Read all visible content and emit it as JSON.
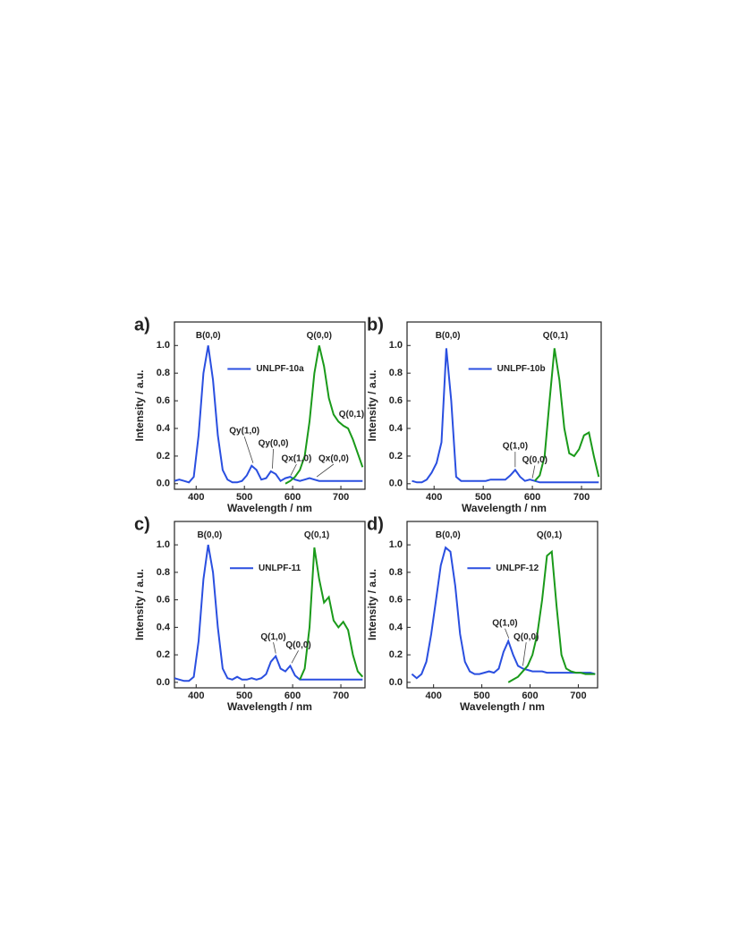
{
  "chart_data": [
    {
      "type": "line",
      "panel_label": "a)",
      "xlabel": "Wavelength / nm",
      "ylabel": "Intensity / a.u.",
      "xlim": [
        355,
        750
      ],
      "ylim": [
        -0.04,
        1.17
      ],
      "xticks": [
        400,
        500,
        600,
        700
      ],
      "yticks": [
        {
          "value": 0,
          "label": "0.0"
        },
        0.2,
        0.4,
        0.6,
        0.8,
        {
          "value": 1,
          "label": "1.0"
        }
      ],
      "x": [
        355,
        365,
        375,
        385,
        395,
        405,
        415,
        425,
        435,
        445,
        455,
        465,
        475,
        485,
        495,
        505,
        515,
        525,
        535,
        545,
        555,
        565,
        575,
        585,
        595,
        605,
        615,
        625,
        635,
        645,
        655,
        665,
        675,
        685,
        695,
        705,
        715,
        725,
        735,
        745
      ],
      "series": [
        {
          "name": "UNLPF-10a",
          "color": "#2a4fe0",
          "values": [
            0.02,
            0.03,
            0.02,
            0.01,
            0.05,
            0.35,
            0.8,
            1.0,
            0.75,
            0.35,
            0.1,
            0.03,
            0.01,
            0.01,
            0.02,
            0.06,
            0.13,
            0.1,
            0.03,
            0.04,
            0.09,
            0.07,
            0.02,
            0.04,
            0.05,
            0.03,
            0.02,
            0.03,
            0.04,
            0.03,
            0.02,
            0.02,
            0.02,
            0.02,
            0.02,
            0.02,
            0.02,
            0.02,
            0.02,
            0.02
          ]
        },
        {
          "color": "#1a9a1a",
          "values": [
            null,
            null,
            null,
            null,
            null,
            null,
            null,
            null,
            null,
            null,
            null,
            null,
            null,
            null,
            null,
            null,
            null,
            null,
            null,
            null,
            null,
            null,
            null,
            0.0,
            0.02,
            0.05,
            0.1,
            0.2,
            0.45,
            0.8,
            1.0,
            0.85,
            0.62,
            0.5,
            0.45,
            0.42,
            0.4,
            0.32,
            0.22,
            0.12
          ]
        }
      ],
      "annotations": [
        "B(0,0)",
        "Q(0,0)",
        "Q(0,1)",
        "Qy(1,0)",
        "Qy(0,0)",
        "Qx(1,0)",
        "Qx(0,0)"
      ]
    },
    {
      "type": "line",
      "panel_label": "b)",
      "xlabel": "Wavelength / nm",
      "ylabel": "Intensity / a.u.",
      "xlim": [
        345,
        740
      ],
      "ylim": [
        -0.04,
        1.17
      ],
      "xticks": [
        400,
        500,
        600,
        700
      ],
      "yticks": [
        {
          "value": 0,
          "label": "0.0"
        },
        0.2,
        0.4,
        0.6,
        0.8,
        {
          "value": 1,
          "label": "1.0"
        }
      ],
      "x": [
        355,
        365,
        375,
        385,
        395,
        405,
        415,
        425,
        435,
        445,
        455,
        465,
        475,
        485,
        495,
        505,
        515,
        525,
        535,
        545,
        555,
        565,
        575,
        585,
        595,
        605,
        615,
        625,
        635,
        645,
        655,
        665,
        675,
        685,
        695,
        705,
        715,
        725,
        735
      ],
      "series": [
        {
          "name": "UNLPF-10b",
          "color": "#2a4fe0",
          "values": [
            0.02,
            0.01,
            0.01,
            0.03,
            0.08,
            0.15,
            0.3,
            0.98,
            0.6,
            0.05,
            0.02,
            0.02,
            0.02,
            0.02,
            0.02,
            0.02,
            0.03,
            0.03,
            0.03,
            0.03,
            0.06,
            0.1,
            0.05,
            0.02,
            0.03,
            0.02,
            0.01,
            0.01,
            0.01,
            0.01,
            0.01,
            0.01,
            0.01,
            0.01,
            0.01,
            0.01,
            0.01,
            0.01,
            0.01
          ]
        },
        {
          "color": "#1a9a1a",
          "values": [
            null,
            null,
            null,
            null,
            null,
            null,
            null,
            null,
            null,
            null,
            null,
            null,
            null,
            null,
            null,
            null,
            null,
            null,
            null,
            null,
            null,
            null,
            null,
            null,
            null,
            0.02,
            0.06,
            0.2,
            0.6,
            0.98,
            0.75,
            0.4,
            0.22,
            0.2,
            0.25,
            0.35,
            0.37,
            0.2,
            0.05
          ]
        }
      ],
      "annotations": [
        "B(0,0)",
        "Q(0,1)",
        "Q(1,0)",
        "Q(0,0)"
      ]
    },
    {
      "type": "line",
      "panel_label": "c)",
      "xlabel": "Wavelength / nm",
      "ylabel": "Intensity / a.u.",
      "xlim": [
        355,
        750
      ],
      "ylim": [
        -0.04,
        1.17
      ],
      "xticks": [
        400,
        500,
        600,
        700
      ],
      "yticks": [
        {
          "value": 0,
          "label": "0.0"
        },
        0.2,
        0.4,
        0.6,
        0.8,
        {
          "value": 1,
          "label": "1.0"
        }
      ],
      "x": [
        355,
        365,
        375,
        385,
        395,
        405,
        415,
        425,
        435,
        445,
        455,
        465,
        475,
        485,
        495,
        505,
        515,
        525,
        535,
        545,
        555,
        565,
        575,
        585,
        595,
        605,
        615,
        625,
        635,
        645,
        655,
        665,
        675,
        685,
        695,
        705,
        715,
        725,
        735,
        745
      ],
      "series": [
        {
          "name": "UNLPF-11",
          "color": "#2a4fe0",
          "values": [
            0.03,
            0.02,
            0.01,
            0.01,
            0.04,
            0.3,
            0.75,
            1.0,
            0.8,
            0.4,
            0.1,
            0.03,
            0.02,
            0.04,
            0.02,
            0.02,
            0.03,
            0.02,
            0.03,
            0.06,
            0.15,
            0.19,
            0.1,
            0.08,
            0.12,
            0.05,
            0.02,
            0.02,
            0.02,
            0.02,
            0.02,
            0.02,
            0.02,
            0.02,
            0.02,
            0.02,
            0.02,
            0.02,
            0.02,
            0.02
          ]
        },
        {
          "color": "#1a9a1a",
          "values": [
            null,
            null,
            null,
            null,
            null,
            null,
            null,
            null,
            null,
            null,
            null,
            null,
            null,
            null,
            null,
            null,
            null,
            null,
            null,
            null,
            null,
            null,
            null,
            null,
            null,
            null,
            0.02,
            0.1,
            0.4,
            0.98,
            0.75,
            0.58,
            0.62,
            0.45,
            0.4,
            0.44,
            0.38,
            0.2,
            0.08,
            0.04
          ]
        }
      ],
      "annotations": [
        "B(0,0)",
        "Q(0,1)",
        "Q(1,0)",
        "Q(0,0)"
      ]
    },
    {
      "type": "line",
      "panel_label": "d)",
      "xlabel": "Wavelength / nm",
      "ylabel": "Intensity / a.u.",
      "xlim": [
        345,
        740
      ],
      "ylim": [
        -0.04,
        1.17
      ],
      "xticks": [
        400,
        500,
        600,
        700
      ],
      "yticks": [
        {
          "value": 0,
          "label": "0.0"
        },
        0.2,
        0.4,
        0.6,
        0.8,
        {
          "value": 1,
          "label": "1.0"
        }
      ],
      "x": [
        355,
        365,
        375,
        385,
        395,
        405,
        415,
        425,
        435,
        445,
        455,
        465,
        475,
        485,
        495,
        505,
        515,
        525,
        535,
        545,
        555,
        565,
        575,
        585,
        595,
        605,
        615,
        625,
        635,
        645,
        655,
        665,
        675,
        685,
        695,
        705,
        715,
        725,
        735
      ],
      "series": [
        {
          "name": "UNLPF-12",
          "color": "#2a4fe0",
          "values": [
            0.06,
            0.03,
            0.06,
            0.15,
            0.35,
            0.6,
            0.85,
            0.98,
            0.95,
            0.7,
            0.35,
            0.15,
            0.08,
            0.06,
            0.06,
            0.07,
            0.08,
            0.07,
            0.1,
            0.22,
            0.3,
            0.2,
            0.12,
            0.1,
            0.09,
            0.08,
            0.08,
            0.08,
            0.07,
            0.07,
            0.07,
            0.07,
            0.07,
            0.07,
            0.07,
            0.07,
            0.07,
            0.07,
            0.06
          ]
        },
        {
          "color": "#1a9a1a",
          "values": [
            null,
            null,
            null,
            null,
            null,
            null,
            null,
            null,
            null,
            null,
            null,
            null,
            null,
            null,
            null,
            null,
            null,
            null,
            null,
            null,
            0.0,
            0.02,
            0.04,
            0.08,
            0.12,
            0.2,
            0.35,
            0.6,
            0.92,
            0.95,
            0.55,
            0.2,
            0.1,
            0.08,
            0.07,
            0.07,
            0.06,
            0.06,
            0.06
          ]
        }
      ],
      "annotations": [
        "B(0,0)",
        "Q(0,1)",
        "Q(1,0)",
        "Q(0,0)"
      ]
    }
  ]
}
